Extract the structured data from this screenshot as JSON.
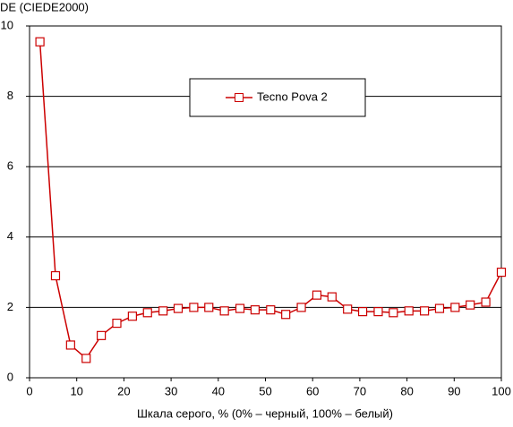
{
  "chart_data": {
    "type": "line",
    "y_label": "DE (CIEDE2000)",
    "x_label": "Шкала серого, % (0% – черный, 100% – белый)",
    "x": [
      2.2,
      5.5,
      8.7,
      12.0,
      15.2,
      18.5,
      21.8,
      25.0,
      28.3,
      31.5,
      34.8,
      38.0,
      41.3,
      44.6,
      47.8,
      51.1,
      54.3,
      57.6,
      60.9,
      64.1,
      67.4,
      70.6,
      73.9,
      77.1,
      80.4,
      83.7,
      86.9,
      90.2,
      93.4,
      96.7,
      100
    ],
    "series": [
      {
        "name": "Tecno Pova 2",
        "color": "#cc0000",
        "values": [
          9.55,
          2.9,
          0.93,
          0.55,
          1.2,
          1.55,
          1.75,
          1.85,
          1.9,
          1.97,
          2.0,
          2.0,
          1.9,
          1.97,
          1.93,
          1.93,
          1.8,
          2.0,
          2.35,
          2.3,
          1.95,
          1.88,
          1.88,
          1.85,
          1.9,
          1.9,
          1.97,
          2.0,
          2.07,
          2.15,
          3.0
        ]
      }
    ],
    "xlim": [
      0,
      100
    ],
    "ylim": [
      0,
      10
    ],
    "xticks": [
      0,
      10,
      20,
      30,
      40,
      50,
      60,
      70,
      80,
      90,
      100
    ],
    "yticks": [
      0,
      2,
      4,
      6,
      8,
      10
    ],
    "grid": true
  }
}
